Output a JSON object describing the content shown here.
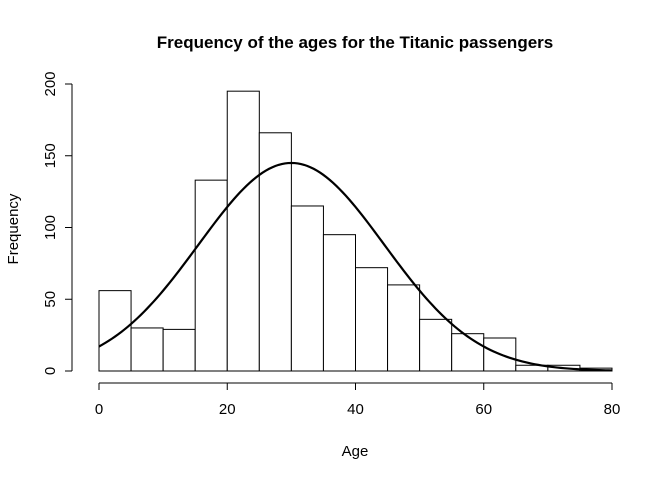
{
  "chart_data": {
    "type": "bar",
    "title": "Frequency of the ages for the Titanic passengers",
    "xlabel": "Age",
    "ylabel": "Frequency",
    "bin_edges": [
      0,
      5,
      10,
      15,
      20,
      25,
      30,
      35,
      40,
      45,
      50,
      55,
      60,
      65,
      70,
      75,
      80
    ],
    "values": [
      56,
      30,
      29,
      133,
      195,
      166,
      115,
      95,
      72,
      60,
      36,
      26,
      23,
      4,
      4,
      2
    ],
    "xlim": [
      0,
      80
    ],
    "ylim": [
      0,
      200
    ],
    "x_ticks": [
      0,
      20,
      40,
      60,
      80
    ],
    "y_ticks": [
      0,
      50,
      100,
      150,
      200
    ],
    "overlay_curve": {
      "type": "normal-density",
      "mean": 30,
      "sd": 14.5,
      "peak": 145
    },
    "grid": false,
    "legend": "none"
  }
}
